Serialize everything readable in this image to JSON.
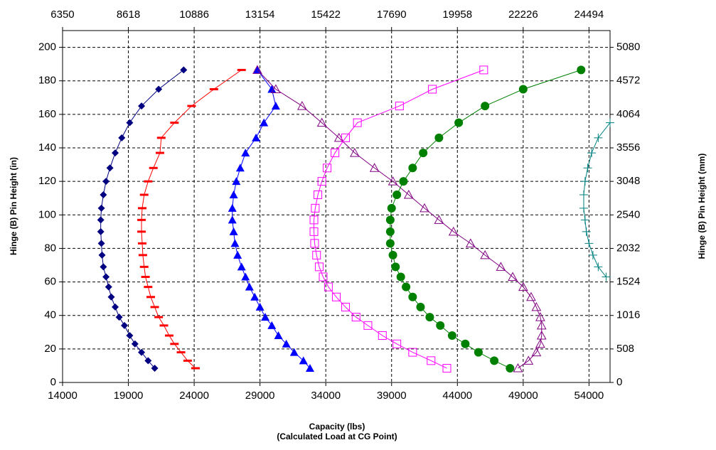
{
  "chart_data": {
    "type": "scatter",
    "xlabel": "Capacity (lbs)",
    "xlabel_sub": "(Calculated Load at CG Point)",
    "ylabel": "Hinge (B) Pin Height (in)",
    "y2label": "Hinge (B) Pin Height (mm)",
    "xlim": [
      14000,
      55600
    ],
    "xticks": [
      14000,
      19000,
      24000,
      29000,
      34000,
      39000,
      44000,
      49000,
      54000
    ],
    "x2lim": [
      6350.4,
      25220.2
    ],
    "x2ticks": [
      6350,
      8618,
      10886,
      13154,
      15422,
      17690,
      19958,
      22226,
      24494
    ],
    "ylim": [
      0,
      210
    ],
    "yticks": [
      0,
      20,
      40,
      60,
      80,
      100,
      120,
      140,
      160,
      180,
      200
    ],
    "y2lim": [
      0,
      5334
    ],
    "y2ticks": [
      0,
      508,
      1016,
      1524,
      2032,
      2540,
      3048,
      3556,
      4064,
      4572,
      5080
    ],
    "grid": true,
    "series": [
      {
        "color": "#000080",
        "marker": "diamond",
        "x": [
          21000,
          20500,
          20000,
          19500,
          19100,
          18700,
          18300,
          18000,
          17700,
          17500,
          17300,
          17100,
          17000,
          16950,
          16900,
          16900,
          16950,
          17100,
          17300,
          17600,
          18000,
          18500,
          19100,
          20000,
          21300,
          23200
        ],
        "y": [
          8.5,
          13,
          18,
          23,
          28,
          34,
          39,
          45,
          51,
          57,
          63,
          69,
          76,
          83,
          90,
          97,
          104,
          112,
          120,
          128,
          137,
          146,
          155,
          165,
          175,
          186.5
        ]
      },
      {
        "color": "#ff0000",
        "marker": "dash",
        "x": [
          24100,
          23500,
          23000,
          22500,
          22100,
          21700,
          21300,
          21000,
          20700,
          20500,
          20300,
          20200,
          20100,
          20050,
          20000,
          20000,
          20050,
          20200,
          20500,
          20900,
          21400,
          21500,
          22500,
          23800,
          25500,
          27600
        ],
        "y": [
          8.5,
          13,
          18,
          23,
          28,
          34,
          39,
          45,
          51,
          57,
          63,
          69,
          76,
          83,
          90,
          97,
          104,
          112,
          120,
          128,
          137,
          146,
          155,
          165,
          175,
          186.5
        ]
      },
      {
        "color": "#0000ff",
        "marker": "triangle",
        "x": [
          32800,
          32300,
          31600,
          31000,
          30400,
          29900,
          29400,
          29000,
          28600,
          28200,
          27900,
          27600,
          27300,
          27100,
          27000,
          26900,
          26900,
          27000,
          27200,
          27500,
          27900,
          28700,
          29300,
          30200,
          29900,
          28800
        ],
        "y": [
          8.5,
          13,
          18,
          23,
          28,
          34,
          39,
          45,
          51,
          57,
          63,
          69,
          76,
          83,
          90,
          97,
          104,
          112,
          120,
          128,
          137,
          146,
          155,
          165,
          175,
          186.5
        ]
      },
      {
        "color": "#800080",
        "marker": "triangle-open",
        "x": [
          48600,
          49400,
          50000,
          50300,
          50400,
          50400,
          50300,
          50000,
          49600,
          49000,
          48200,
          47300,
          46100,
          45000,
          43700,
          42600,
          41500,
          40300,
          39100,
          37700,
          36200,
          35000,
          33700,
          32200,
          30200,
          28800
        ],
        "y": [
          8.5,
          13,
          18,
          23,
          28,
          34,
          39,
          45,
          51,
          57,
          63,
          69,
          76,
          83,
          90,
          97,
          104,
          112,
          120,
          128,
          137,
          146,
          155,
          165,
          175,
          186.5
        ]
      },
      {
        "color": "#ff00ff",
        "marker": "square-open",
        "x": [
          43200,
          42000,
          40600,
          39400,
          38300,
          37200,
          36300,
          35500,
          34800,
          34200,
          33800,
          33500,
          33300,
          33150,
          33100,
          33100,
          33200,
          33400,
          33700,
          34100,
          34700,
          35500,
          36400,
          39600,
          42100,
          46000
        ],
        "y": [
          8.5,
          13,
          18,
          23,
          28,
          34,
          39,
          45,
          51,
          57,
          63,
          69,
          76,
          83,
          90,
          97,
          104,
          112,
          120,
          128,
          137,
          146,
          155,
          165,
          175,
          186.5
        ]
      },
      {
        "color": "#008000",
        "marker": "circle",
        "x": [
          48000,
          46800,
          45600,
          44600,
          43600,
          42700,
          41900,
          41200,
          40600,
          40100,
          39700,
          39300,
          39100,
          38900,
          38900,
          38900,
          39000,
          39400,
          39900,
          40600,
          41400,
          42600,
          44100,
          46100,
          49000,
          53400
        ],
        "y": [
          8.5,
          13,
          18,
          23,
          28,
          34,
          39,
          45,
          51,
          57,
          63,
          69,
          76,
          83,
          90,
          97,
          104,
          112,
          120,
          128,
          137,
          146,
          155,
          165,
          175,
          186.5
        ]
      },
      {
        "color": "#008080",
        "marker": "plus",
        "x": [
          55300,
          54700,
          54300,
          54000,
          53800,
          53700,
          53600,
          53600,
          53700,
          53900,
          54200,
          54700,
          55600
        ],
        "y": [
          63,
          69,
          76,
          83,
          90,
          97,
          104,
          112,
          120,
          128,
          137,
          146,
          155
        ]
      }
    ]
  }
}
